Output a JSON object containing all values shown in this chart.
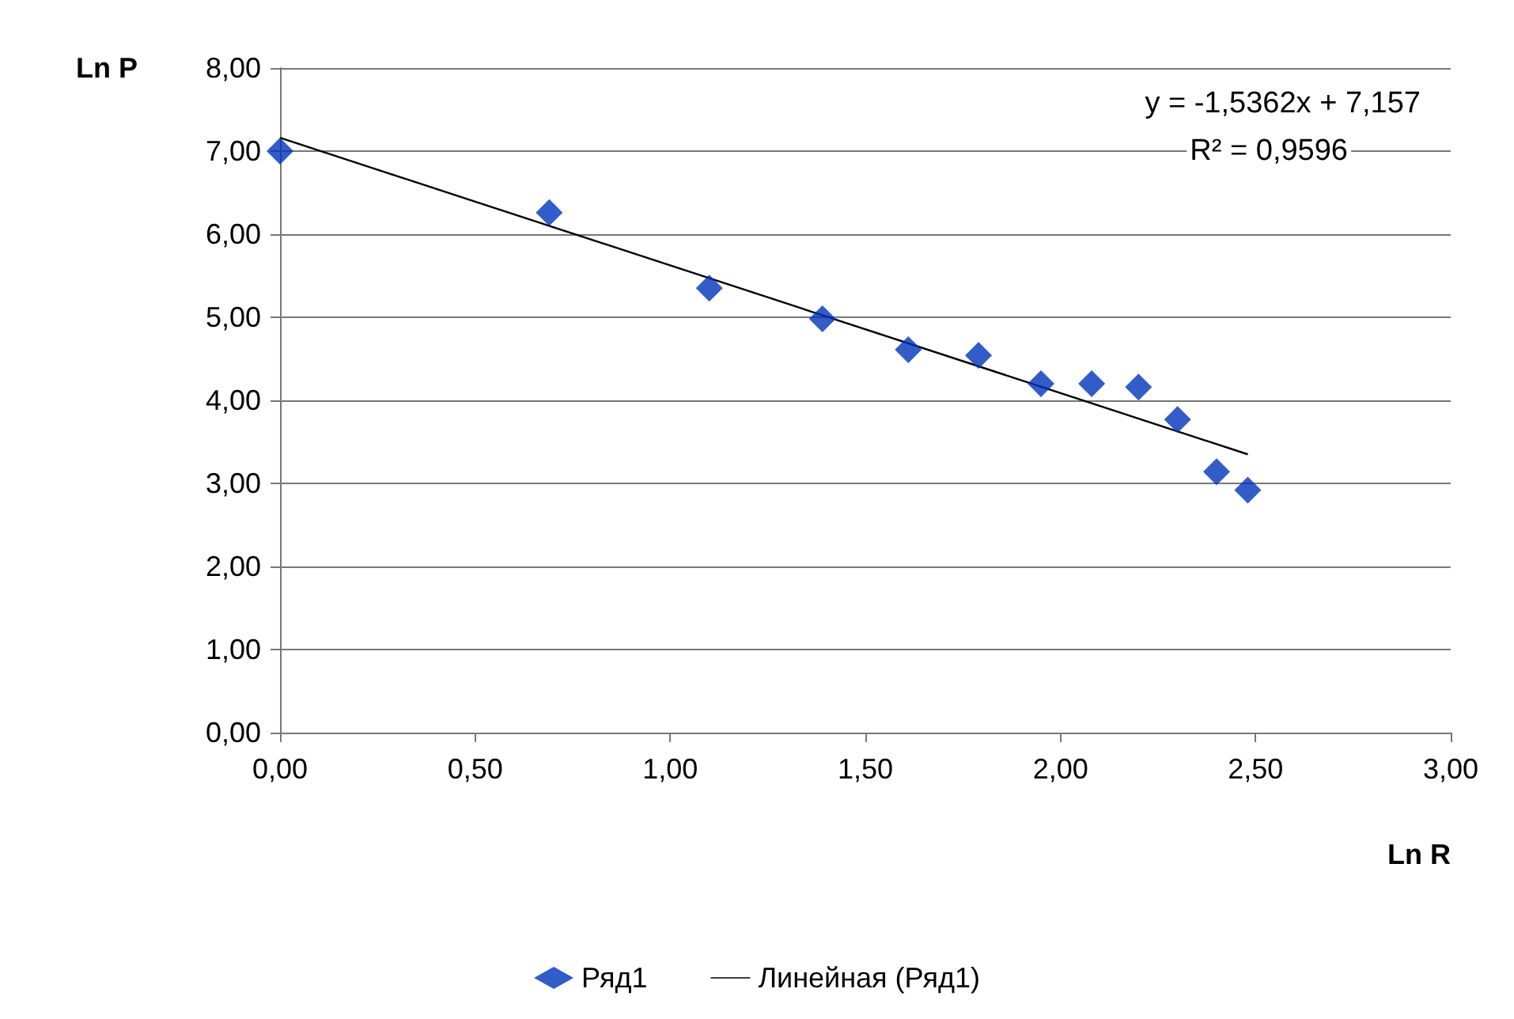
{
  "chart_data": {
    "type": "scatter",
    "xlabel": "Ln R",
    "ylabel": "Ln P",
    "annotations": [
      "y = -1,5362x + 7,157",
      "R² = 0,9596"
    ],
    "series": [
      {
        "name": "Ряд1",
        "color": "#0033bb",
        "marker": "diamond",
        "x": [
          0,
          0.69,
          1.1,
          1.39,
          1.61,
          1.79,
          1.95,
          2.08,
          2.2,
          2.3,
          2.4,
          2.48
        ],
        "values": [
          7.0,
          6.26,
          5.35,
          4.98,
          4.61,
          4.54,
          4.2,
          4.2,
          4.16,
          3.77,
          3.14,
          2.92
        ]
      },
      {
        "name": "Линейная (Ряд1)",
        "type": "line",
        "color": "#000000",
        "marker": "none",
        "line_style": "solid",
        "x": [
          0,
          2.48
        ],
        "values": [
          7.16,
          3.35
        ]
      }
    ],
    "xlim": [
      0,
      3
    ],
    "ylim": [
      0,
      8
    ],
    "xticks": [
      {
        "value": 0,
        "label": "0,00"
      },
      {
        "value": 0.5,
        "label": "0,50"
      },
      {
        "value": 1,
        "label": "1,00"
      },
      {
        "value": 1.5,
        "label": "1,50"
      },
      {
        "value": 2,
        "label": "2,00"
      },
      {
        "value": 2.5,
        "label": "2,50"
      },
      {
        "value": 3,
        "label": "3,00"
      }
    ],
    "yticks": [
      {
        "value": 0,
        "label": "0,00"
      },
      {
        "value": 1,
        "label": "1,00"
      },
      {
        "value": 2,
        "label": "2,00"
      },
      {
        "value": 3,
        "label": "3,00"
      },
      {
        "value": 4,
        "label": "4,00"
      },
      {
        "value": 5,
        "label": "5,00"
      },
      {
        "value": 6,
        "label": "6,00"
      },
      {
        "value": 7,
        "label": "7,00"
      },
      {
        "value": 8,
        "label": "8,00"
      }
    ],
    "grid": "y",
    "legend": "bottom"
  }
}
